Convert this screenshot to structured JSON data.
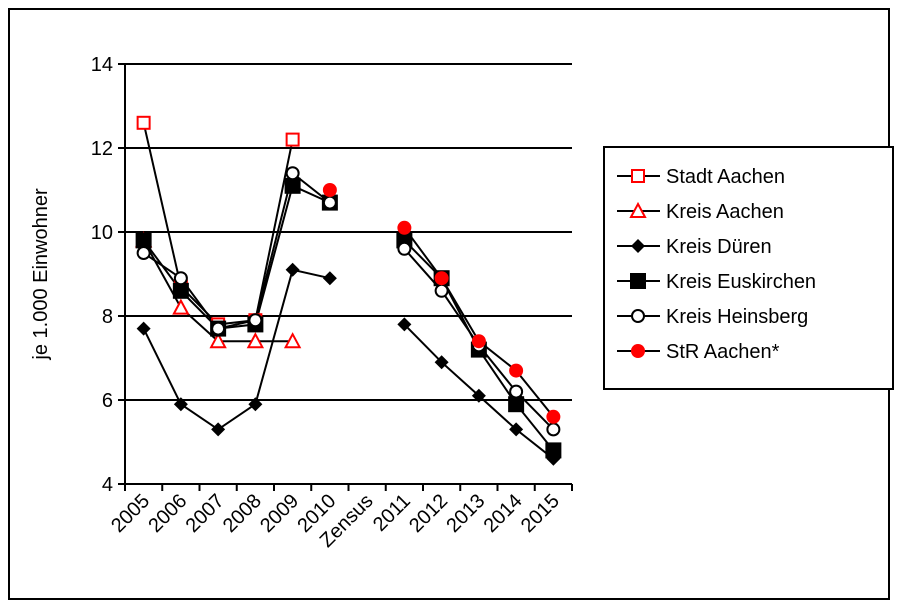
{
  "chart_data": {
    "type": "line",
    "title": "",
    "xlabel": "",
    "ylabel": "je 1.000 Einwohner",
    "ylim": [
      4,
      14
    ],
    "yticks": [
      4,
      6,
      8,
      10,
      12,
      14
    ],
    "grid": "horizontal",
    "legend_position": "right",
    "categories": [
      "2005",
      "2006",
      "2007",
      "2008",
      "2009",
      "2010",
      "Zensus",
      "2011",
      "2012",
      "2013",
      "2014",
      "2015"
    ],
    "series": [
      {
        "name": "Stadt Aachen",
        "marker": "open-square",
        "color": "#ff0000",
        "line_color": "#000000",
        "values": [
          12.6,
          8.7,
          7.8,
          7.9,
          12.2,
          null,
          null,
          null,
          null,
          null,
          null,
          null
        ]
      },
      {
        "name": "Kreis Aachen",
        "marker": "open-triangle",
        "color": "#ff0000",
        "line_color": "#000000",
        "values": [
          9.8,
          8.2,
          7.4,
          7.4,
          7.4,
          null,
          null,
          null,
          null,
          null,
          null,
          null
        ]
      },
      {
        "name": "Kreis Düren",
        "marker": "filled-diamond",
        "color": "#000000",
        "line_color": "#000000",
        "values": [
          7.7,
          5.9,
          5.3,
          5.9,
          9.1,
          8.9,
          null,
          7.8,
          6.9,
          6.1,
          5.3,
          4.6
        ]
      },
      {
        "name": "Kreis Euskirchen",
        "marker": "filled-square",
        "color": "#000000",
        "line_color": "#000000",
        "values": [
          9.8,
          8.6,
          7.7,
          7.8,
          11.1,
          10.7,
          null,
          9.8,
          8.9,
          7.2,
          5.9,
          4.8
        ]
      },
      {
        "name": "Kreis Heinsberg",
        "marker": "open-circle",
        "color": "#000000",
        "line_color": "#000000",
        "values": [
          9.5,
          8.9,
          7.7,
          7.9,
          11.4,
          10.7,
          null,
          9.6,
          8.6,
          7.3,
          6.2,
          5.3
        ]
      },
      {
        "name": "StR Aachen*",
        "marker": "filled-circle",
        "color": "#ff0000",
        "line_color": "#000000",
        "values": [
          null,
          null,
          null,
          null,
          null,
          11.0,
          null,
          10.1,
          8.9,
          7.4,
          6.7,
          5.6
        ]
      }
    ]
  }
}
